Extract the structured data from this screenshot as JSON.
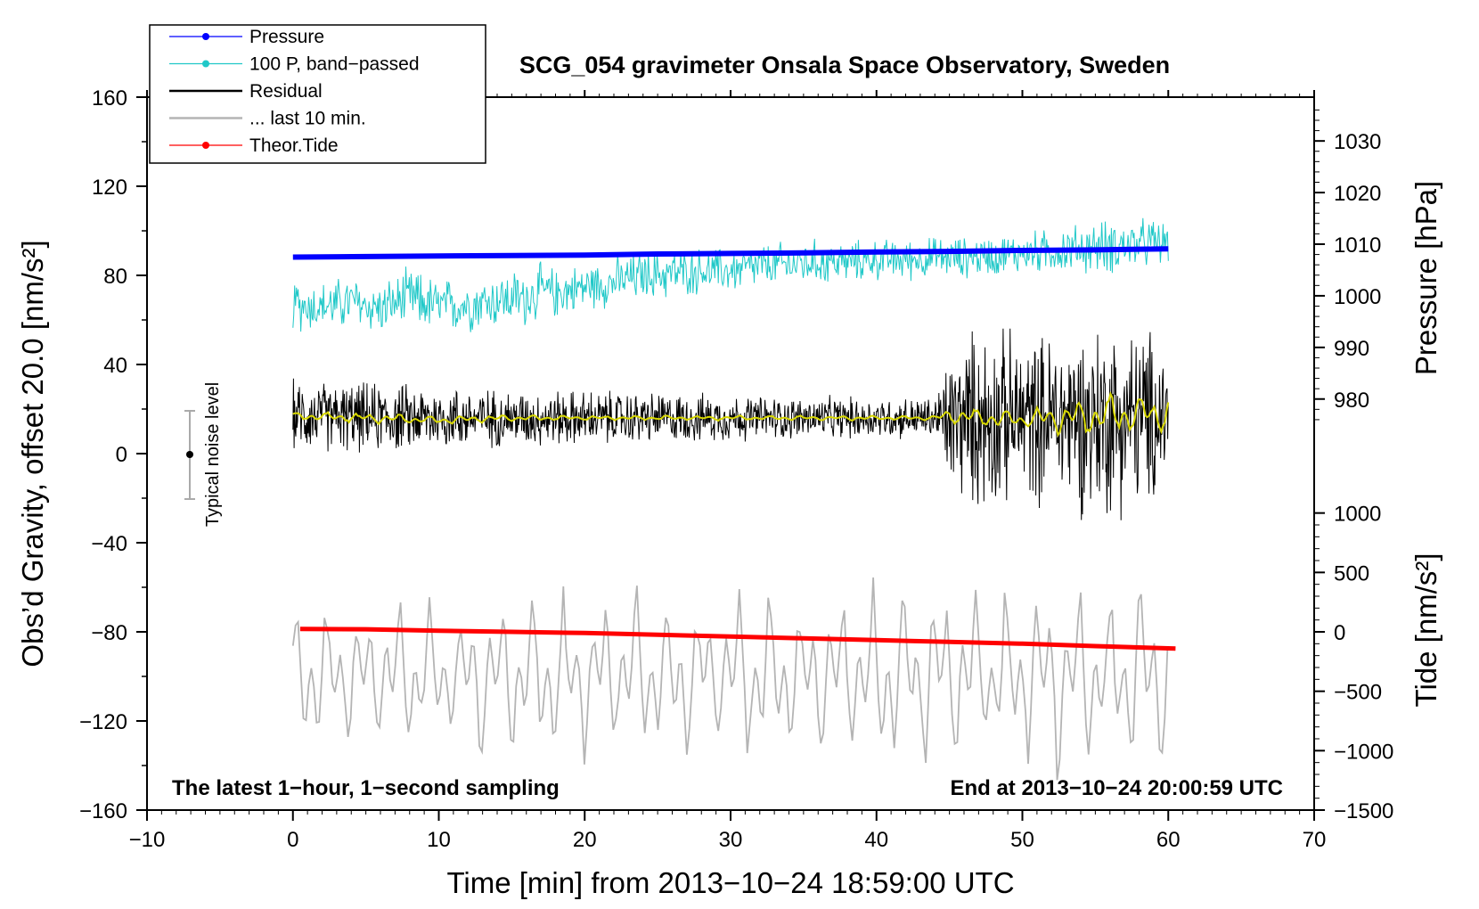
{
  "chart_data": {
    "type": "line",
    "title": "SCG_054 gravimeter Onsala Space Observatory, Sweden",
    "xlabel": "Time [min] from 2013−10−24 18:59:00 UTC",
    "ylabel_left": "Obs’d Gravity, offset 20.0 [nm/s²]",
    "ylabel_right_pressure": "Pressure [hPa]",
    "ylabel_right_tide": "Tide [nm/s²]",
    "xlim": [
      -10,
      70
    ],
    "ylim": [
      -160,
      160
    ],
    "x_ticks": [
      "−10",
      "0",
      "10",
      "20",
      "30",
      "40",
      "50",
      "60",
      "70"
    ],
    "x_tick_values": [
      -10,
      0,
      10,
      20,
      30,
      40,
      50,
      60,
      70
    ],
    "y_ticks": [
      "160",
      "120",
      "80",
      "40",
      "0",
      "−40",
      "−80",
      "−120",
      "−160"
    ],
    "y_tick_values": [
      160,
      120,
      80,
      40,
      0,
      -40,
      -80,
      -120,
      -160
    ],
    "pressure_axis": {
      "ticks": [
        "1030",
        "1020",
        "1010",
        "1000",
        "990",
        "980"
      ],
      "values": [
        1030,
        1020,
        1010,
        1000,
        990,
        980
      ],
      "map": {
        "v1": 1010,
        "g1": 94,
        "v2": 980,
        "g2": 24.5
      }
    },
    "tide_axis": {
      "ticks": [
        "1000",
        "500",
        "0",
        "−500",
        "−1000",
        "−1500"
      ],
      "values": [
        1000,
        500,
        0,
        -500,
        -1000,
        -1500
      ],
      "map": {
        "v1": 0,
        "g1": -80,
        "v2": -1500,
        "g2": -160
      }
    },
    "legend": {
      "location": "top-left",
      "entries": [
        {
          "label": "Pressure",
          "color": "#0000ff",
          "marker": true
        },
        {
          "label": "100 P, band−passed",
          "color": "#20c8c8",
          "marker": true
        },
        {
          "label": "Residual",
          "color": "#000000",
          "marker": false
        },
        {
          "label": "... last 10 min.",
          "color": "#b4b4b4",
          "marker": false
        },
        {
          "label": "Theor.Tide",
          "color": "#ff0000",
          "marker": true
        }
      ]
    },
    "noise_bar": {
      "label": "Typical noise level",
      "x": -7,
      "center": 0,
      "half_range": 20
    },
    "annotations": {
      "bottom_left": "The latest 1−hour, 1−second sampling",
      "bottom_right": "End at 2013−10−24 20:00:59 UTC"
    },
    "series": [
      {
        "name": "Pressure",
        "units": "hPa",
        "color": "#0000ff",
        "x": [
          0,
          5,
          10,
          15,
          20,
          25,
          30,
          35,
          40,
          45,
          50,
          55,
          60
        ],
        "values": [
          1007.5,
          1007.6,
          1007.7,
          1007.8,
          1007.9,
          1008.1,
          1008.2,
          1008.3,
          1008.5,
          1008.6,
          1008.8,
          1008.9,
          1009.1
        ]
      },
      {
        "name": "100 P, band−passed",
        "units": "nm/s²",
        "color": "#20c8c8",
        "x": [
          0,
          2,
          4,
          6,
          8,
          10,
          12,
          14,
          16,
          17,
          18,
          20,
          22,
          24,
          26,
          28,
          30,
          32,
          34,
          36,
          38,
          40,
          42,
          44,
          46,
          48,
          50,
          52,
          54,
          56,
          58,
          60
        ],
        "values": [
          67,
          66,
          68,
          65,
          70,
          66,
          67,
          69,
          70,
          73,
          72,
          75,
          77,
          80,
          81,
          82,
          82,
          84,
          85,
          86,
          86,
          87,
          87,
          88,
          88,
          89,
          90,
          91,
          92,
          93,
          94,
          95
        ],
        "amplitude": [
          12,
          11,
          12,
          11,
          13,
          12,
          12,
          12,
          13,
          12,
          11,
          10,
          11,
          11,
          11,
          10,
          10,
          10,
          10,
          10,
          9,
          9,
          9,
          9,
          9,
          9,
          9,
          10,
          11,
          12,
          11,
          10
        ]
      },
      {
        "name": "Residual",
        "units": "nm/s²",
        "color": "#000000",
        "x": [
          0,
          5,
          10,
          15,
          20,
          25,
          30,
          35,
          40,
          44,
          45,
          47,
          50,
          53,
          55,
          57,
          59,
          60
        ],
        "values": [
          17,
          16,
          16,
          16,
          16,
          16,
          16,
          16,
          16,
          16,
          14,
          16,
          16,
          16,
          15,
          16,
          16,
          18
        ],
        "amplitude": [
          15,
          15,
          14,
          12,
          12,
          11,
          10,
          9,
          9,
          9,
          30,
          40,
          35,
          38,
          42,
          40,
          38,
          30
        ]
      },
      {
        "name": "Smoothed residual",
        "units": "nm/s²",
        "color": "#d8d800",
        "x": [
          0,
          5,
          10,
          15,
          20,
          25,
          30,
          35,
          40,
          44,
          45,
          50,
          55,
          60
        ],
        "values": [
          17,
          16,
          15,
          16,
          16,
          16,
          16,
          16,
          16,
          16,
          17,
          15,
          17,
          18
        ],
        "amplitude": [
          2,
          2,
          2,
          1.5,
          1,
          1,
          1,
          1,
          1,
          1,
          4,
          4,
          10,
          8
        ]
      },
      {
        "name": "... last 10 min.",
        "units": "nm/s²",
        "color": "#b4b4b4",
        "x": [
          0,
          10,
          20,
          30,
          40,
          50,
          60
        ],
        "values": [
          -100,
          -100,
          -100,
          -100,
          -100,
          -100,
          -100
        ],
        "amplitude": [
          30,
          33,
          35,
          36,
          37,
          38,
          38
        ]
      },
      {
        "name": "Theor.Tide",
        "units": "nm/s²",
        "color": "#ff0000",
        "x": [
          0.5,
          5,
          10,
          15,
          20,
          25,
          30,
          35,
          40,
          45,
          50,
          55,
          60.5
        ],
        "values": [
          25,
          22,
          10,
          0,
          -10,
          -25,
          -40,
          -55,
          -70,
          -85,
          -100,
          -120,
          -140
        ]
      }
    ]
  }
}
